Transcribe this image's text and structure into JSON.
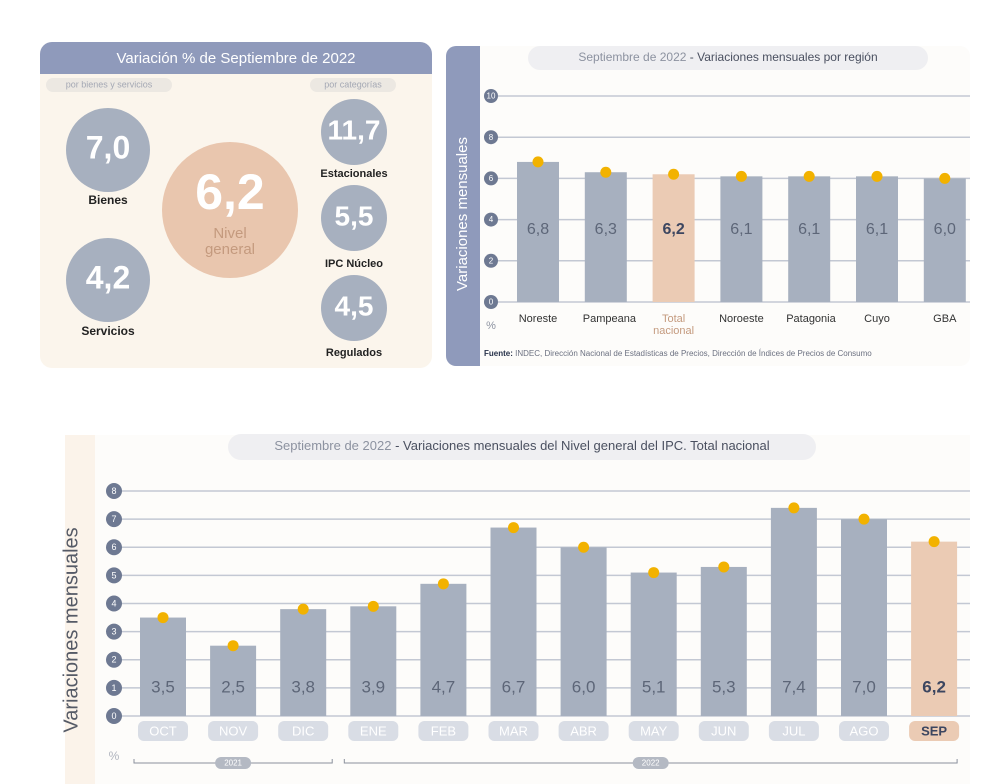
{
  "summary": {
    "title": "Variación % de Septiembre de 2022",
    "left_tag": "por bienes y servicios",
    "right_tag": "por categorías",
    "bienes": {
      "value": "7,0",
      "label": "Bienes"
    },
    "servicios": {
      "value": "4,2",
      "label": "Servicios"
    },
    "nivel_general": {
      "value": "6,2",
      "label": "Nivel general"
    },
    "estacionales": {
      "value": "11,7",
      "label": "Estacionales"
    },
    "nucleo": {
      "value": "5,5",
      "label": "IPC Núcleo"
    },
    "regulados": {
      "value": "4,5",
      "label": "Regulados"
    }
  },
  "chart_data": [
    {
      "type": "bar",
      "title_date": "Septiembre de 2022",
      "title": "- Variaciones mensuales por región",
      "y_label": "Variaciones mensuales",
      "unit": "%",
      "categories": [
        "Noreste",
        "Pampeana",
        "Total nacional",
        "Noroeste",
        "Patagonia",
        "Cuyo",
        "GBA"
      ],
      "values": [
        6.8,
        6.3,
        6.2,
        6.1,
        6.1,
        6.1,
        6.0
      ],
      "value_labels": [
        "6,8",
        "6,3",
        "6,2",
        "6,1",
        "6,1",
        "6,1",
        "6,0"
      ],
      "colors": [
        "#a7b0bf",
        "#a7b0bf",
        "#ebcbb4",
        "#a7b0bf",
        "#a7b0bf",
        "#a7b0bf",
        "#a7b0bf"
      ],
      "marker_color": "#f2b200",
      "ylim": [
        0,
        10
      ],
      "yticks": [
        0,
        2,
        4,
        6,
        8,
        10
      ],
      "grid": true,
      "source_label": "Fuente:",
      "source": "INDEC, Dirección Nacional de Estadísticas de Precios, Dirección de Índices de Precios de Consumo"
    },
    {
      "type": "bar",
      "title_date": "Septiembre de 2022",
      "title": "- Variaciones mensuales del Nivel general del IPC. Total nacional",
      "y_label": "Variaciones mensuales",
      "unit": "%",
      "categories": [
        "OCT",
        "NOV",
        "DIC",
        "ENE",
        "FEB",
        "MAR",
        "ABR",
        "MAY",
        "JUN",
        "JUL",
        "AGO",
        "SEP"
      ],
      "years": [
        "2021",
        "2021",
        "2021",
        "2022",
        "2022",
        "2022",
        "2022",
        "2022",
        "2022",
        "2022",
        "2022",
        "2022"
      ],
      "values": [
        3.5,
        2.5,
        3.8,
        3.9,
        4.7,
        6.7,
        6.0,
        5.1,
        5.3,
        7.4,
        7.0,
        6.2
      ],
      "value_labels": [
        "3,5",
        "2,5",
        "3,8",
        "3,9",
        "4,7",
        "6,7",
        "6,0",
        "5,1",
        "5,3",
        "7,4",
        "7,0",
        "6,2"
      ],
      "colors": [
        "#a7b0bf",
        "#a7b0bf",
        "#a7b0bf",
        "#a7b0bf",
        "#a7b0bf",
        "#a7b0bf",
        "#a7b0bf",
        "#a7b0bf",
        "#a7b0bf",
        "#a7b0bf",
        "#a7b0bf",
        "#ebcbb4"
      ],
      "marker_color": "#f2b200",
      "ylim": [
        0,
        8
      ],
      "yticks": [
        0,
        1,
        2,
        3,
        4,
        5,
        6,
        7,
        8
      ],
      "grid": true
    }
  ]
}
